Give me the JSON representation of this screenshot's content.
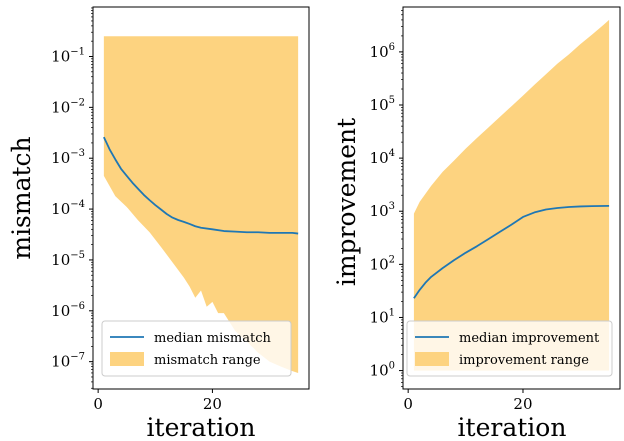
{
  "chart_data": [
    {
      "type": "line",
      "xlabel": "iteration",
      "ylabel": "mismatch",
      "yscale": "log",
      "xlim": [
        -0.9,
        36.9
      ],
      "ylim": [
        2.9e-08,
        0.94
      ],
      "xticks": [
        0,
        20
      ],
      "yticks": [
        1e-07,
        1e-06,
        1e-05,
        0.0001,
        0.001,
        0.01,
        0.1
      ],
      "ytick_labels": [
        {
          "base": "10",
          "exp": "−7"
        },
        {
          "base": "10",
          "exp": "−6"
        },
        {
          "base": "10",
          "exp": "−5"
        },
        {
          "base": "10",
          "exp": "−4"
        },
        {
          "base": "10",
          "exp": "−3"
        },
        {
          "base": "10",
          "exp": "−2"
        },
        {
          "base": "10",
          "exp": "−1"
        }
      ],
      "legend": "lower-right",
      "grid": false,
      "series": [
        {
          "name": "median mismatch",
          "kind": "line",
          "color": "#1f77b4",
          "x": [
            1,
            2,
            3,
            4,
            5,
            6,
            7,
            8,
            9,
            10,
            11,
            12,
            13,
            14,
            15,
            16,
            17,
            18,
            20,
            22,
            24,
            26,
            28,
            30,
            32,
            34,
            35
          ],
          "y": [
            0.0026,
            0.0015,
            0.00095,
            0.00062,
            0.00045,
            0.00033,
            0.00025,
            0.00019,
            0.00015,
            0.00012,
            9.8e-05,
            8e-05,
            6.8e-05,
            6.1e-05,
            5.6e-05,
            5.1e-05,
            4.6e-05,
            4.3e-05,
            4e-05,
            3.7e-05,
            3.6e-05,
            3.5e-05,
            3.5e-05,
            3.4e-05,
            3.4e-05,
            3.4e-05,
            3.3e-05
          ]
        },
        {
          "name": "mismatch range",
          "kind": "band",
          "color": "#fdd380",
          "x": [
            1,
            3,
            5,
            7,
            9,
            11,
            13,
            15,
            16,
            17,
            18,
            19,
            20,
            21,
            22,
            24,
            26,
            28,
            30,
            32,
            34,
            35
          ],
          "upper": [
            0.25,
            0.25,
            0.25,
            0.25,
            0.25,
            0.25,
            0.25,
            0.25,
            0.25,
            0.25,
            0.25,
            0.25,
            0.25,
            0.25,
            0.25,
            0.25,
            0.25,
            0.25,
            0.25,
            0.25,
            0.25,
            0.25
          ],
          "lower": [
            0.00045,
            0.00018,
            0.00011,
            6e-05,
            3.5e-05,
            1.8e-05,
            9e-06,
            4.5e-06,
            3e-06,
            1.8e-06,
            2.5e-06,
            1.2e-06,
            1.5e-06,
            9e-07,
            9e-07,
            4e-07,
            2.5e-07,
            1.5e-07,
            1e-07,
            8e-08,
            6.5e-08,
            6e-08
          ]
        }
      ]
    },
    {
      "type": "line",
      "xlabel": "iteration",
      "ylabel": "improvement",
      "yscale": "log",
      "xlim": [
        -0.9,
        36.9
      ],
      "ylim": [
        0.45,
        7000000
      ],
      "xticks": [
        0,
        20
      ],
      "yticks": [
        1,
        10,
        100,
        1000,
        10000,
        100000,
        1000000
      ],
      "ytick_labels": [
        {
          "base": "10",
          "exp": "0"
        },
        {
          "base": "10",
          "exp": "1"
        },
        {
          "base": "10",
          "exp": "2"
        },
        {
          "base": "10",
          "exp": "3"
        },
        {
          "base": "10",
          "exp": "4"
        },
        {
          "base": "10",
          "exp": "5"
        },
        {
          "base": "10",
          "exp": "6"
        }
      ],
      "legend": "lower-right",
      "grid": false,
      "series": [
        {
          "name": "median improvement",
          "kind": "line",
          "color": "#1f77b4",
          "x": [
            1,
            2,
            3,
            4,
            6,
            8,
            10,
            12,
            14,
            16,
            18,
            20,
            22,
            24,
            26,
            28,
            30,
            32,
            35
          ],
          "y": [
            23,
            33,
            45,
            58,
            85,
            120,
            165,
            220,
            300,
            410,
            560,
            780,
            950,
            1080,
            1150,
            1200,
            1230,
            1250,
            1260
          ]
        },
        {
          "name": "improvement range",
          "kind": "band",
          "color": "#fdd380",
          "x": [
            1,
            2,
            4,
            6,
            8,
            10,
            12,
            14,
            16,
            18,
            20,
            22,
            24,
            26,
            28,
            30,
            32,
            34,
            35
          ],
          "upper": [
            900,
            1500,
            3000,
            5500,
            9000,
            15000,
            24000,
            38000,
            60000,
            95000,
            150000,
            240000,
            380000,
            600000,
            900000,
            1400000,
            2100000,
            3200000,
            4000000
          ],
          "lower": [
            1,
            1,
            1,
            1,
            1,
            1,
            1,
            1,
            1,
            1,
            1,
            1,
            1,
            1,
            1,
            1,
            1,
            1,
            1
          ]
        }
      ]
    }
  ]
}
